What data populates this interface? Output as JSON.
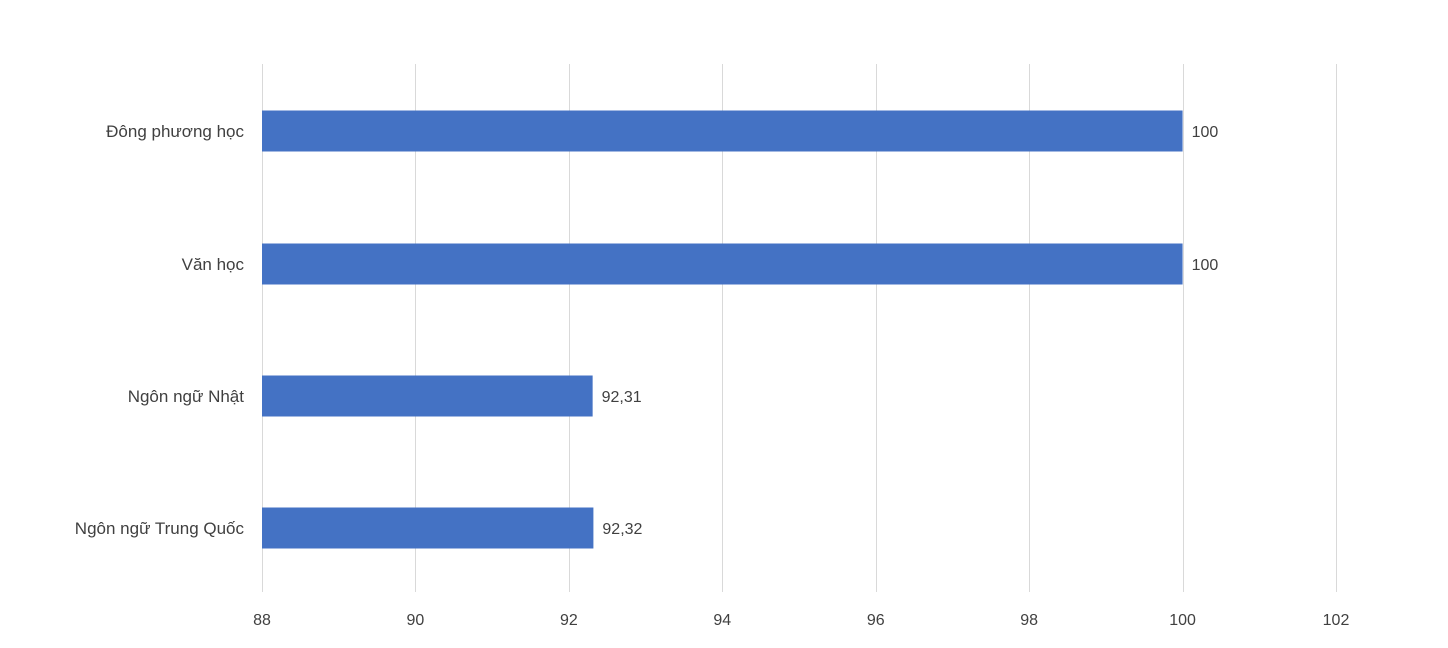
{
  "chart_data": {
    "type": "bar",
    "orientation": "horizontal",
    "categories": [
      "Đông phương học",
      "Văn học",
      "Ngôn ngữ Nhật",
      "Ngôn ngữ Trung Quốc"
    ],
    "values": [
      100,
      100,
      92.31,
      92.32
    ],
    "value_labels": [
      "100",
      "100",
      "92,31",
      "92,32"
    ],
    "x_ticks": [
      "88",
      "90",
      "92",
      "94",
      "96",
      "98",
      "100",
      "102"
    ],
    "xlim": [
      88,
      102
    ],
    "grid": true,
    "legend": "none",
    "colors": {
      "bar": "#4472c4",
      "grid": "#d9d9d9",
      "text": "#404040"
    }
  }
}
